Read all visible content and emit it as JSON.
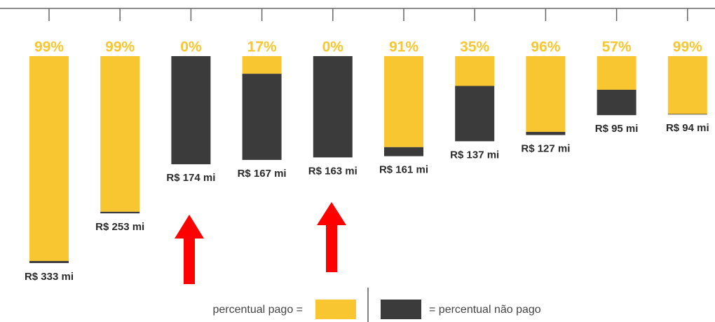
{
  "chart_data": {
    "type": "bar",
    "values": [
      333,
      253,
      174,
      167,
      163,
      161,
      137,
      127,
      95,
      94
    ],
    "value_labels": [
      "R$ 333 mi",
      "R$ 253 mi",
      "R$ 174 mi",
      "R$ 167 mi",
      "R$ 163 mi",
      "R$ 161 mi",
      "R$ 137 mi",
      "R$ 127 mi",
      "R$ 95 mi",
      "R$ 94 mi"
    ],
    "percent_paid": {
      "values": [
        99,
        99,
        0,
        17,
        0,
        91,
        35,
        96,
        57,
        99
      ],
      "value_labels": [
        "99%",
        "99%",
        "0%",
        "17%",
        "0%",
        "91%",
        "35%",
        "96%",
        "57%",
        "99%"
      ]
    },
    "legend": {
      "paid": "percentual pago =",
      "unpaid": "= percentual não pago"
    },
    "colors": {
      "paid": "#f8c630",
      "unpaid": "#3b3b3b"
    }
  }
}
